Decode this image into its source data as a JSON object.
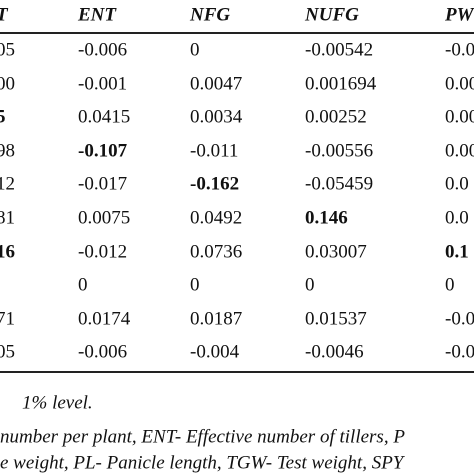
{
  "table": {
    "header": [
      "T",
      "ENT",
      "NFG",
      "NUFG",
      "PW"
    ],
    "rows": [
      [
        "05",
        "-0.006",
        "0",
        "-0.00542",
        "-0.0"
      ],
      [
        "00",
        "-0.001",
        "0.0047",
        "0.001694",
        "0.00"
      ],
      [
        "5",
        "0.0415",
        "0.0034",
        "0.00252",
        "0.00"
      ],
      [
        "98",
        "-0.107",
        "-0.011",
        "-0.00556",
        "0.00"
      ],
      [
        "12",
        "-0.017",
        "-0.162",
        "-0.05459",
        "0.0"
      ],
      [
        "81",
        "0.0075",
        "0.0492",
        "0.146",
        "0.0"
      ],
      [
        "16",
        "-0.012",
        "0.0736",
        "0.03007",
        "0.1"
      ],
      [
        "",
        "0",
        "0",
        "0",
        "0"
      ],
      [
        "71",
        "0.0174",
        "0.0187",
        "0.01537",
        "-0.0"
      ],
      [
        "05",
        "-0.006",
        "-0.004",
        "-0.0046",
        "-0.0"
      ]
    ]
  },
  "notes": [
    "1% level.",
    "number per plant, ENT- Effective number of tillers, P",
    "e weight, PL- Panicle length, TGW- Test weight, SPY"
  ]
}
